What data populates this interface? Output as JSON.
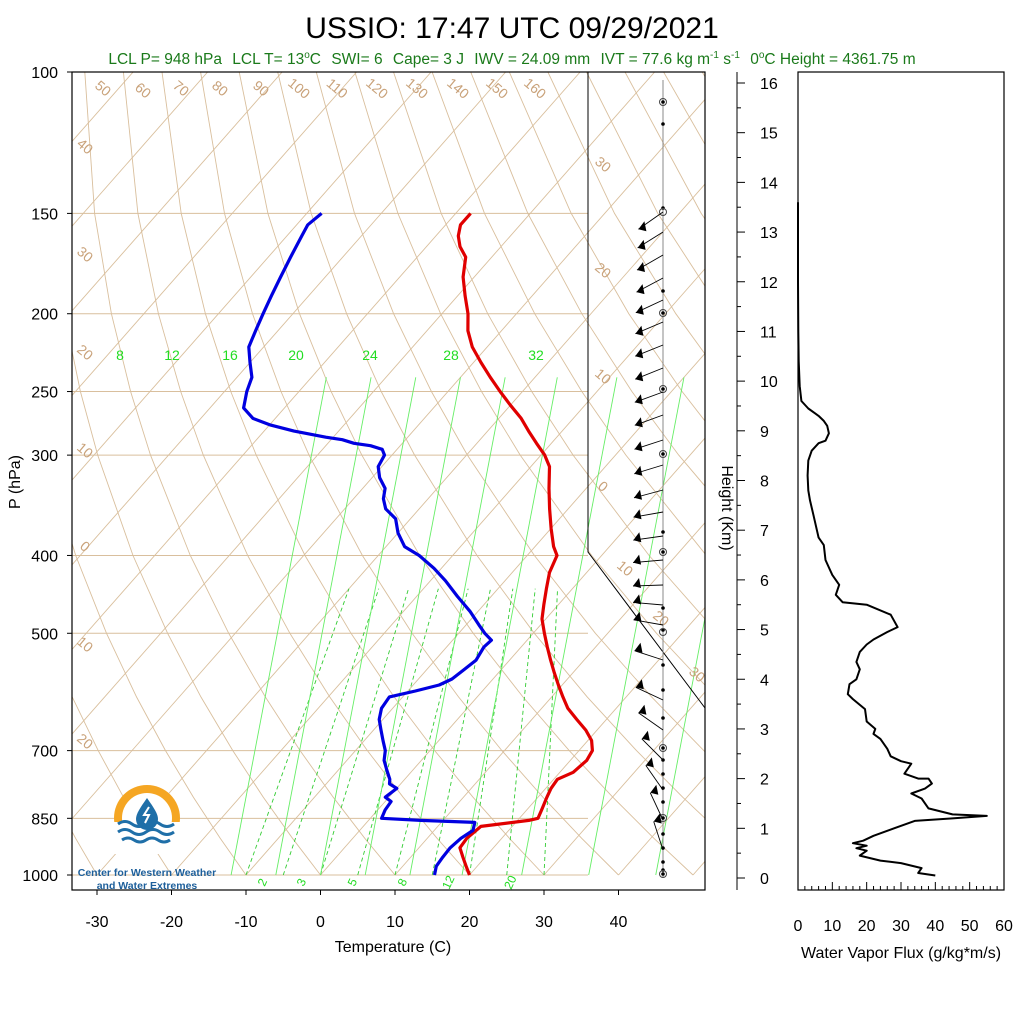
{
  "header": {
    "title": "USSIO: 17:47 UTC 09/29/2021",
    "subtitle_parts": [
      "LCL P= 948 hPa",
      "LCL T= 13",
      "o",
      "C",
      "SWI= 6",
      "Cape= 3 J",
      "IWV = 24.09 mm",
      "IVT = 77.6 kg m",
      "-1",
      " s",
      "-1",
      "0",
      "o",
      "C Height = 4361.75 m"
    ]
  },
  "logo": {
    "line1": "Center for Western Weather",
    "line2": "and Water Extremes",
    "colors": {
      "ring": "#f5a623",
      "wave": "#1f6fa8",
      "drop": "#1f6fa8"
    }
  },
  "chart_data": [
    {
      "type": "line",
      "title": "Skew-T log-P sounding",
      "xlabel": "Temperature (C)",
      "ylabel": "P (hPa)",
      "x_ticks": [
        "-30",
        "-20",
        "-10",
        "0",
        "10",
        "20",
        "30",
        "40"
      ],
      "y_ticks": [
        "100",
        "150",
        "200",
        "250",
        "300",
        "400",
        "500",
        "700",
        "850",
        "1000"
      ],
      "ylim": [
        1000,
        100
      ],
      "log_y": true,
      "skewed": true,
      "isotherm_labels": [
        "50",
        "60",
        "70",
        "80",
        "90",
        "100",
        "110",
        "120",
        "130",
        "140",
        "150",
        "160",
        "40",
        "30",
        "20",
        "10",
        "0",
        "10",
        "20",
        "30",
        "20",
        "10",
        "0",
        "10",
        "20",
        "30"
      ],
      "mixing_ratio_labels_top": [
        "8",
        "12",
        "16",
        "20",
        "24",
        "28",
        "32"
      ],
      "mixing_ratio_labels_bottom": [
        "2",
        "3",
        "5",
        "8",
        "12",
        "20"
      ],
      "series": [
        {
          "name": "temperature",
          "color": "#e00000",
          "points": [
            [
              20.0,
              1000
            ],
            [
              18.5,
              975
            ],
            [
              17.0,
              950
            ],
            [
              15.5,
              925
            ],
            [
              15.3,
              900
            ],
            [
              15.8,
              870
            ],
            [
              21.5,
              855
            ],
            [
              22.5,
              850
            ],
            [
              22,
              830
            ],
            [
              21.2,
              800
            ],
            [
              20.7,
              780
            ],
            [
              20.5,
              760
            ],
            [
              21.8,
              745
            ],
            [
              22.2,
              720
            ],
            [
              21.8,
              700
            ],
            [
              20.5,
              680
            ],
            [
              18.5,
              660
            ],
            [
              16,
              640
            ],
            [
              13.5,
              620
            ],
            [
              11.5,
              600
            ],
            [
              9.5,
              580
            ],
            [
              7.5,
              560
            ],
            [
              5.5,
              540
            ],
            [
              3.5,
              520
            ],
            [
              1.5,
              500
            ],
            [
              -0.5,
              480
            ],
            [
              -2,
              460
            ],
            [
              -3.5,
              440
            ],
            [
              -5,
              420
            ],
            [
              -6,
              400
            ],
            [
              -7.5,
              390
            ],
            [
              -10,
              370
            ],
            [
              -12.5,
              350
            ],
            [
              -15,
              330
            ],
            [
              -17.5,
              310
            ],
            [
              -19.5,
              300
            ],
            [
              -22,
              290
            ],
            [
              -24.5,
              280
            ],
            [
              -27,
              270
            ],
            [
              -30,
              260
            ],
            [
              -33,
              250
            ],
            [
              -36,
              240
            ],
            [
              -39,
              230
            ],
            [
              -42,
              220
            ],
            [
              -44.5,
              210
            ],
            [
              -46.5,
              200
            ],
            [
              -49,
              190
            ],
            [
              -51.5,
              180
            ],
            [
              -53.5,
              170
            ],
            [
              -55.5,
              165
            ],
            [
              -57,
              160
            ],
            [
              -58,
              155
            ],
            [
              -58,
              150
            ]
          ]
        },
        {
          "name": "dewpoint",
          "color": "#0000e0",
          "points": [
            [
              15.3,
              1000
            ],
            [
              14.5,
              975
            ],
            [
              14.3,
              950
            ],
            [
              14.2,
              925
            ],
            [
              14.5,
              900
            ],
            [
              15.2,
              880
            ],
            [
              14.5,
              860
            ],
            [
              7,
              855
            ],
            [
              1.5,
              850
            ],
            [
              1,
              830
            ],
            [
              0.8,
              810
            ],
            [
              -0.5,
              800
            ],
            [
              0,
              780
            ],
            [
              -1.5,
              770
            ],
            [
              -2,
              760
            ],
            [
              -3.5,
              740
            ],
            [
              -5,
              720
            ],
            [
              -6,
              700
            ],
            [
              -7.5,
              680
            ],
            [
              -9,
              660
            ],
            [
              -10.5,
              640
            ],
            [
              -11.5,
              620
            ],
            [
              -11.8,
              600
            ],
            [
              -9,
              590
            ],
            [
              -6.5,
              580
            ],
            [
              -5.5,
              570
            ],
            [
              -5,
              555
            ],
            [
              -4.5,
              540
            ],
            [
              -5,
              520
            ],
            [
              -4.8,
              510
            ],
            [
              -6.5,
              500
            ],
            [
              -8,
              490
            ],
            [
              -11,
              470
            ],
            [
              -14.5,
              450
            ],
            [
              -18,
              430
            ],
            [
              -21,
              415
            ],
            [
              -24.5,
              400
            ],
            [
              -27.5,
              390
            ],
            [
              -30,
              375
            ],
            [
              -32,
              360
            ],
            [
              -34.5,
              350
            ],
            [
              -36,
              340
            ],
            [
              -37,
              330
            ],
            [
              -39,
              320
            ],
            [
              -40.5,
              310
            ],
            [
              -41,
              300
            ],
            [
              -42,
              295
            ],
            [
              -44,
              292
            ],
            [
              -46.5,
              290
            ],
            [
              -48.5,
              287
            ],
            [
              -51,
              285
            ],
            [
              -56,
              280
            ],
            [
              -60,
              275
            ],
            [
              -63,
              270
            ],
            [
              -65.5,
              262
            ],
            [
              -67,
              250
            ],
            [
              -68,
              240
            ],
            [
              -70,
              230
            ],
            [
              -72,
              220
            ],
            [
              -73,
              210
            ],
            [
              -74,
              200
            ],
            [
              -75,
              190
            ],
            [
              -76,
              180
            ],
            [
              -77,
              170
            ],
            [
              -78,
              160
            ],
            [
              -78.5,
              155
            ],
            [
              -78,
              150
            ]
          ]
        }
      ]
    },
    {
      "type": "line",
      "title": "Water vapor flux profile",
      "xlabel": "Water Vapor Flux (g/kg*m/s)",
      "ylabel": "Height (Km)",
      "x_ticks": [
        "0",
        "10",
        "20",
        "30",
        "40",
        "50",
        "60"
      ],
      "y_ticks": [
        "0",
        "1",
        "2",
        "3",
        "4",
        "5",
        "6",
        "7",
        "8",
        "9",
        "10",
        "11",
        "12",
        "13",
        "14",
        "15",
        "16"
      ],
      "xlim": [
        0,
        60
      ],
      "ylim": [
        0,
        16.5
      ],
      "series": [
        {
          "name": "water vapor flux",
          "color": "#000000",
          "points": [
            [
              40,
              0.05
            ],
            [
              35,
              0.1
            ],
            [
              36,
              0.2
            ],
            [
              30,
              0.3
            ],
            [
              24,
              0.35
            ],
            [
              18,
              0.45
            ],
            [
              20,
              0.55
            ],
            [
              17,
              0.6
            ],
            [
              20,
              0.65
            ],
            [
              16,
              0.7
            ],
            [
              19,
              0.75
            ],
            [
              22,
              0.85
            ],
            [
              28,
              1.0
            ],
            [
              34,
              1.15
            ],
            [
              45,
              1.2
            ],
            [
              55,
              1.25
            ],
            [
              45,
              1.28
            ],
            [
              38,
              1.4
            ],
            [
              36,
              1.6
            ],
            [
              33,
              1.7
            ],
            [
              37,
              1.8
            ],
            [
              39,
              1.9
            ],
            [
              38,
              2.0
            ],
            [
              35,
              2.0
            ],
            [
              31,
              2.1
            ],
            [
              33,
              2.3
            ],
            [
              30,
              2.35
            ],
            [
              27,
              2.45
            ],
            [
              26,
              2.6
            ],
            [
              24,
              2.8
            ],
            [
              22,
              2.9
            ],
            [
              22.5,
              3.0
            ],
            [
              20,
              3.15
            ],
            [
              19.5,
              3.4
            ],
            [
              16,
              3.6
            ],
            [
              14.5,
              3.7
            ],
            [
              15,
              3.9
            ],
            [
              17,
              4.0
            ],
            [
              18,
              4.2
            ],
            [
              17,
              4.35
            ],
            [
              18,
              4.55
            ],
            [
              20,
              4.7
            ],
            [
              22,
              4.8
            ],
            [
              26,
              4.95
            ],
            [
              29,
              5.05
            ],
            [
              27,
              5.3
            ],
            [
              20,
              5.5
            ],
            [
              13,
              5.55
            ],
            [
              11,
              5.7
            ],
            [
              12,
              5.9
            ],
            [
              10,
              6.1
            ],
            [
              9,
              6.25
            ],
            [
              8,
              6.4
            ],
            [
              7.5,
              6.7
            ],
            [
              6,
              6.85
            ],
            [
              5.5,
              7.0
            ],
            [
              4.5,
              7.3
            ],
            [
              3.5,
              7.6
            ],
            [
              3,
              7.8
            ],
            [
              2.8,
              8.1
            ],
            [
              3,
              8.4
            ],
            [
              4,
              8.6
            ],
            [
              6,
              8.75
            ],
            [
              8,
              8.8
            ],
            [
              9,
              8.95
            ],
            [
              8.5,
              9.1
            ],
            [
              7.5,
              9.2
            ],
            [
              6,
              9.3
            ],
            [
              5,
              9.35
            ],
            [
              3,
              9.45
            ],
            [
              1,
              9.6
            ],
            [
              0.5,
              9.9
            ],
            [
              0.2,
              10.4
            ],
            [
              0.1,
              11
            ],
            [
              0,
              12
            ],
            [
              0,
              13.5
            ],
            [
              0,
              13.6
            ]
          ]
        }
      ]
    }
  ],
  "chart_text": {
    "left_y_title": "P (hPa)",
    "left_x_title": "Temperature (C)",
    "right_y_title": "Height (Km)",
    "right_x_title": "Water Vapor Flux (g/kg*m/s)"
  }
}
